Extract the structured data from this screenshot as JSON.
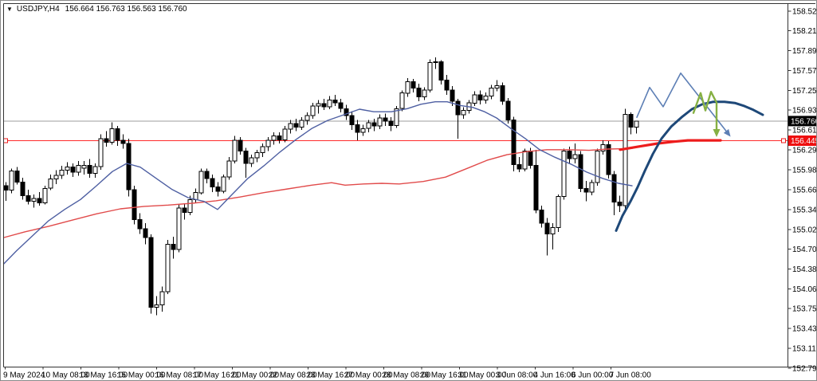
{
  "title": {
    "dropdown_icon": "▼",
    "symbol_period": "USDJPY,H4",
    "ohlc": "156.664 156.763 156.563 156.760"
  },
  "colors": {
    "background": "#ffffff",
    "frame": "#333333",
    "candle_up_fill": "#ffffff",
    "candle_down_fill": "#000000",
    "candle_stroke": "#000000",
    "ma_blue": "#4e5fa2",
    "ma_red": "#e14b4b",
    "current_price_line": "#9c9c9c",
    "level_line_red": "#ff2b2b",
    "annotation_navy": "#1e4878",
    "annotation_steel_blue": "#5d7fb5",
    "annotation_green": "#86b043",
    "annotation_red": "#ed1c1c",
    "tag_black_bg": "#000000",
    "tag_red_bg": "#ee0f0f",
    "tag_text": "#ffffff",
    "axis_text": "#000000"
  },
  "chart_data": {
    "type": "candlestick",
    "title": "USDJPY,H4",
    "current_price": 156.76,
    "red_level": 156.445,
    "y_axis": {
      "side": "right",
      "top_price": 158.525,
      "bottom_price": 152.79,
      "ticks": [
        158.525,
        158.21,
        157.89,
        157.57,
        157.25,
        156.935,
        156.615,
        156.295,
        155.98,
        155.66,
        155.34,
        155.02,
        154.705,
        154.385,
        154.065,
        153.75,
        153.43,
        153.11,
        152.79
      ]
    },
    "x_axis": {
      "ticks": [
        "9 May 2024",
        "10 May 08:00",
        "13 May 16:00",
        "15 May 00:00",
        "16 May 08:00",
        "17 May 16:00",
        "21 May 00:00",
        "22 May 08:00",
        "23 May 16:00",
        "27 May 00:00",
        "28 May 08:00",
        "29 May 16:00",
        "31 May 00:00",
        "3 Jun 08:00",
        "4 Jun 16:00",
        "6 Jun 00:00",
        "7 Jun 08:00"
      ]
    },
    "price_tags": [
      {
        "label": "156.760",
        "price": 156.76,
        "style": "black"
      },
      {
        "label": "156.445",
        "price": 156.445,
        "style": "red"
      }
    ],
    "candles_ohlc": [
      [
        155.72,
        155.78,
        155.48,
        155.65
      ],
      [
        155.65,
        156.0,
        155.6,
        155.96
      ],
      [
        155.96,
        156.02,
        155.74,
        155.78
      ],
      [
        155.78,
        155.85,
        155.5,
        155.56
      ],
      [
        155.56,
        155.66,
        155.42,
        155.47
      ],
      [
        155.47,
        155.58,
        155.37,
        155.52
      ],
      [
        155.52,
        155.62,
        155.4,
        155.45
      ],
      [
        155.45,
        155.72,
        155.42,
        155.68
      ],
      [
        155.68,
        155.9,
        155.65,
        155.83
      ],
      [
        155.83,
        155.97,
        155.75,
        155.89
      ],
      [
        155.89,
        156.04,
        155.83,
        155.97
      ],
      [
        155.97,
        156.1,
        155.9,
        156.02
      ],
      [
        156.02,
        156.08,
        155.86,
        155.94
      ],
      [
        155.94,
        156.12,
        155.88,
        156.05
      ],
      [
        156.0,
        156.12,
        155.9,
        156.05
      ],
      [
        156.05,
        156.15,
        155.85,
        155.92
      ],
      [
        155.92,
        156.08,
        155.85,
        156.03
      ],
      [
        156.03,
        156.55,
        155.98,
        156.48
      ],
      [
        156.48,
        156.6,
        156.35,
        156.42
      ],
      [
        156.42,
        156.74,
        156.38,
        156.64
      ],
      [
        156.64,
        156.68,
        156.36,
        156.45
      ],
      [
        156.45,
        156.55,
        156.32,
        156.4
      ],
      [
        156.4,
        156.48,
        155.55,
        155.66
      ],
      [
        155.66,
        155.72,
        155.1,
        155.18
      ],
      [
        155.18,
        155.28,
        154.95,
        155.03
      ],
      [
        155.03,
        155.12,
        154.78,
        154.89
      ],
      [
        154.89,
        154.94,
        153.67,
        153.77
      ],
      [
        153.77,
        153.95,
        153.64,
        153.81
      ],
      [
        153.81,
        154.1,
        153.7,
        154.02
      ],
      [
        154.02,
        154.85,
        153.98,
        154.78
      ],
      [
        154.78,
        154.9,
        154.55,
        154.7
      ],
      [
        154.7,
        155.42,
        154.65,
        155.36
      ],
      [
        155.36,
        155.44,
        155.18,
        155.29
      ],
      [
        155.29,
        155.56,
        155.25,
        155.5
      ],
      [
        155.5,
        155.68,
        155.44,
        155.61
      ],
      [
        155.61,
        156.0,
        155.58,
        155.95
      ],
      [
        155.95,
        156.0,
        155.76,
        155.84
      ],
      [
        155.84,
        155.9,
        155.62,
        155.7
      ],
      [
        155.7,
        155.78,
        155.55,
        155.63
      ],
      [
        155.63,
        155.9,
        155.6,
        155.86
      ],
      [
        155.86,
        156.18,
        155.82,
        156.12
      ],
      [
        156.12,
        156.52,
        156.08,
        156.45
      ],
      [
        156.45,
        156.5,
        156.22,
        156.28
      ],
      [
        156.28,
        156.33,
        155.85,
        156.08
      ],
      [
        156.08,
        156.22,
        156.02,
        156.17
      ],
      [
        156.17,
        156.3,
        156.1,
        156.25
      ],
      [
        156.25,
        156.4,
        156.18,
        156.35
      ],
      [
        156.35,
        156.5,
        156.28,
        156.45
      ],
      [
        156.45,
        156.58,
        156.38,
        156.52
      ],
      [
        156.52,
        156.58,
        156.4,
        156.46
      ],
      [
        156.46,
        156.68,
        156.42,
        156.63
      ],
      [
        156.63,
        156.78,
        156.56,
        156.72
      ],
      [
        156.72,
        156.8,
        156.6,
        156.66
      ],
      [
        156.66,
        156.82,
        156.62,
        156.77
      ],
      [
        156.77,
        156.9,
        156.7,
        156.85
      ],
      [
        156.85,
        157.05,
        156.8,
        157.0
      ],
      [
        157.0,
        157.1,
        156.88,
        157.04
      ],
      [
        157.04,
        157.12,
        156.94,
        156.99
      ],
      [
        156.99,
        157.16,
        156.95,
        157.1
      ],
      [
        157.1,
        157.18,
        157.0,
        157.05
      ],
      [
        157.05,
        157.12,
        156.9,
        156.96
      ],
      [
        156.96,
        157.02,
        156.78,
        156.85
      ],
      [
        156.85,
        156.92,
        156.62,
        156.7
      ],
      [
        156.7,
        156.78,
        156.45,
        156.58
      ],
      [
        156.58,
        156.7,
        156.52,
        156.64
      ],
      [
        156.64,
        156.78,
        156.58,
        156.73
      ],
      [
        156.73,
        156.8,
        156.6,
        156.68
      ],
      [
        156.68,
        156.87,
        156.63,
        156.81
      ],
      [
        156.81,
        156.88,
        156.68,
        156.76
      ],
      [
        156.76,
        156.82,
        156.6,
        156.69
      ],
      [
        156.69,
        157.0,
        156.65,
        156.96
      ],
      [
        156.96,
        157.25,
        156.92,
        157.21
      ],
      [
        157.21,
        157.45,
        157.15,
        157.39
      ],
      [
        157.39,
        157.44,
        157.22,
        157.29
      ],
      [
        157.29,
        157.36,
        157.08,
        157.15
      ],
      [
        157.15,
        157.3,
        157.1,
        157.26
      ],
      [
        157.26,
        157.75,
        157.22,
        157.7
      ],
      [
        157.7,
        157.78,
        157.6,
        157.71
      ],
      [
        157.71,
        157.74,
        157.35,
        157.42
      ],
      [
        157.42,
        157.5,
        157.18,
        157.26
      ],
      [
        157.26,
        157.32,
        157.0,
        157.08
      ],
      [
        157.08,
        157.12,
        156.48,
        156.86
      ],
      [
        156.86,
        156.98,
        156.8,
        156.93
      ],
      [
        156.93,
        157.1,
        156.88,
        157.05
      ],
      [
        157.05,
        157.24,
        157.0,
        157.18
      ],
      [
        157.18,
        157.25,
        157.03,
        157.1
      ],
      [
        157.1,
        157.22,
        157.04,
        157.16
      ],
      [
        157.16,
        157.34,
        157.11,
        157.29
      ],
      [
        157.29,
        157.42,
        157.24,
        157.33
      ],
      [
        157.33,
        157.38,
        157.02,
        157.08
      ],
      [
        157.08,
        157.13,
        156.72,
        156.78
      ],
      [
        156.78,
        156.83,
        155.95,
        156.06
      ],
      [
        156.06,
        156.18,
        155.94,
        155.99
      ],
      [
        155.99,
        156.32,
        155.95,
        156.28
      ],
      [
        156.28,
        156.33,
        156.0,
        156.05
      ],
      [
        156.05,
        156.3,
        155.28,
        155.33
      ],
      [
        155.33,
        155.4,
        155.05,
        155.12
      ],
      [
        155.12,
        155.2,
        154.6,
        154.95
      ],
      [
        154.95,
        155.12,
        154.7,
        155.05
      ],
      [
        155.05,
        155.58,
        154.98,
        155.55
      ],
      [
        155.55,
        156.32,
        155.5,
        156.28
      ],
      [
        156.28,
        156.35,
        156.08,
        156.16
      ],
      [
        156.16,
        156.4,
        156.08,
        156.22
      ],
      [
        156.22,
        156.28,
        155.62,
        155.68
      ],
      [
        155.68,
        155.8,
        155.47,
        155.62
      ],
      [
        155.62,
        155.82,
        155.57,
        155.77
      ],
      [
        155.77,
        156.32,
        155.72,
        156.28
      ],
      [
        156.28,
        156.45,
        156.22,
        156.38
      ],
      [
        156.38,
        156.44,
        155.84,
        155.9
      ],
      [
        155.9,
        155.96,
        155.25,
        155.46
      ],
      [
        155.46,
        155.56,
        155.3,
        155.4
      ],
      [
        155.4,
        156.96,
        155.35,
        156.87
      ],
      [
        156.87,
        156.9,
        156.55,
        156.66
      ],
      [
        156.664,
        156.763,
        156.563,
        156.76
      ]
    ],
    "ma_blue_points": [
      [
        4,
        154.47
      ],
      [
        20,
        154.68
      ],
      [
        40,
        154.92
      ],
      [
        60,
        155.16
      ],
      [
        80,
        155.34
      ],
      [
        100,
        155.5
      ],
      [
        120,
        155.72
      ],
      [
        140,
        155.95
      ],
      [
        158,
        156.08
      ],
      [
        175,
        156.02
      ],
      [
        195,
        155.84
      ],
      [
        215,
        155.66
      ],
      [
        235,
        155.53
      ],
      [
        255,
        155.47
      ],
      [
        272,
        155.34
      ],
      [
        290,
        155.58
      ],
      [
        310,
        155.84
      ],
      [
        330,
        156.04
      ],
      [
        350,
        156.26
      ],
      [
        370,
        156.46
      ],
      [
        390,
        156.64
      ],
      [
        410,
        156.77
      ],
      [
        430,
        156.86
      ],
      [
        450,
        156.95
      ],
      [
        468,
        156.91
      ],
      [
        490,
        156.91
      ],
      [
        510,
        156.96
      ],
      [
        527,
        157.03
      ],
      [
        545,
        157.07
      ],
      [
        560,
        157.07
      ],
      [
        577,
        157.01
      ],
      [
        592,
        156.98
      ],
      [
        607,
        156.91
      ],
      [
        622,
        156.81
      ],
      [
        640,
        156.64
      ],
      [
        658,
        156.48
      ],
      [
        676,
        156.3
      ],
      [
        695,
        156.18
      ],
      [
        715,
        156.07
      ],
      [
        735,
        155.94
      ],
      [
        755,
        155.84
      ],
      [
        775,
        155.76
      ],
      [
        792,
        155.72
      ]
    ],
    "ma_red_points": [
      [
        4,
        154.89
      ],
      [
        30,
        154.98
      ],
      [
        60,
        155.07
      ],
      [
        90,
        155.17
      ],
      [
        120,
        155.27
      ],
      [
        150,
        155.35
      ],
      [
        180,
        155.39
      ],
      [
        210,
        155.41
      ],
      [
        240,
        155.44
      ],
      [
        270,
        155.48
      ],
      [
        300,
        155.54
      ],
      [
        330,
        155.61
      ],
      [
        360,
        155.67
      ],
      [
        390,
        155.73
      ],
      [
        415,
        155.77
      ],
      [
        432,
        155.73
      ],
      [
        455,
        155.75
      ],
      [
        478,
        155.76
      ],
      [
        500,
        155.75
      ],
      [
        530,
        155.79
      ],
      [
        558,
        155.86
      ],
      [
        585,
        156.0
      ],
      [
        610,
        156.13
      ],
      [
        635,
        156.22
      ],
      [
        660,
        156.27
      ],
      [
        685,
        156.3
      ],
      [
        712,
        156.3
      ],
      [
        738,
        156.29
      ],
      [
        762,
        156.31
      ],
      [
        792,
        156.32
      ]
    ],
    "annotations": {
      "projection_zigzag_arrow": {
        "points": [
          [
            798,
            156.82
          ],
          [
            814,
            157.3
          ],
          [
            831,
            156.99
          ],
          [
            853,
            157.53
          ],
          [
            910,
            156.6
          ]
        ],
        "arrow": true
      },
      "green_zigzag": {
        "points": [
          [
            869,
            156.89
          ],
          [
            878,
            157.21
          ],
          [
            884,
            156.93
          ],
          [
            891,
            157.23
          ],
          [
            897,
            157.08
          ]
        ]
      },
      "green_down_arrow": {
        "points": [
          [
            898,
            157.06
          ],
          [
            898,
            156.63
          ]
        ],
        "arrow": true
      },
      "navy_curve": {
        "points": [
          [
            772,
            155.0
          ],
          [
            780,
            155.24
          ],
          [
            790,
            155.47
          ],
          [
            799,
            155.7
          ],
          [
            808,
            155.96
          ],
          [
            818,
            156.23
          ],
          [
            829,
            156.48
          ],
          [
            841,
            156.67
          ],
          [
            854,
            156.82
          ],
          [
            867,
            156.95
          ],
          [
            880,
            157.03
          ],
          [
            894,
            157.07
          ],
          [
            908,
            157.07
          ],
          [
            921,
            157.05
          ],
          [
            933,
            157.0
          ],
          [
            944,
            156.94
          ],
          [
            956,
            156.86
          ]
        ]
      },
      "red_support_line": {
        "points": [
          [
            777,
            156.3
          ],
          [
            800,
            156.35
          ],
          [
            824,
            156.4
          ],
          [
            845,
            156.43
          ],
          [
            862,
            156.45
          ],
          [
            903,
            156.45
          ]
        ]
      }
    }
  }
}
